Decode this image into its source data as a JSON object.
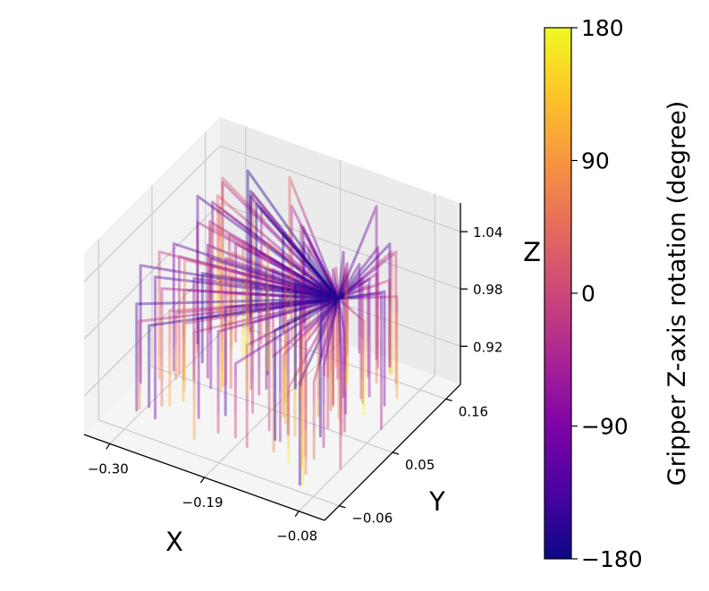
{
  "chart_data": {
    "type": "scatter",
    "projection": "3d",
    "description_hint": "3D trajectories of gripper positions converging to a common point; segments colored by gripper Z-axis rotation",
    "axes": {
      "x": {
        "label": "X",
        "ticks": [
          "−0.30",
          "−0.19",
          "−0.08"
        ],
        "tick_values": [
          -0.3,
          -0.19,
          -0.08
        ],
        "range": [
          -0.33,
          -0.05
        ]
      },
      "y": {
        "label": "Y",
        "ticks": [
          "−0.06",
          "0.05",
          "0.16"
        ],
        "tick_values": [
          -0.06,
          0.05,
          0.16
        ],
        "range": [
          -0.09,
          0.19
        ]
      },
      "z": {
        "label": "Z",
        "ticks": [
          "0.92",
          "0.98",
          "1.04"
        ],
        "tick_values": [
          0.92,
          0.98,
          1.04
        ],
        "range": [
          0.88,
          1.07
        ]
      }
    },
    "grid": true,
    "convergence_point": {
      "x": -0.13,
      "y": 0.08,
      "z": 1.0
    },
    "colorbar": {
      "label": "Gripper Z-axis rotation (degree)",
      "colormap": "plasma",
      "ticks": [
        "−180",
        "−90",
        "0",
        "90",
        "180"
      ],
      "tick_values": [
        -180,
        -90,
        0,
        90,
        180
      ],
      "range": [
        -180,
        180
      ]
    },
    "trajectory_count": 120
  }
}
